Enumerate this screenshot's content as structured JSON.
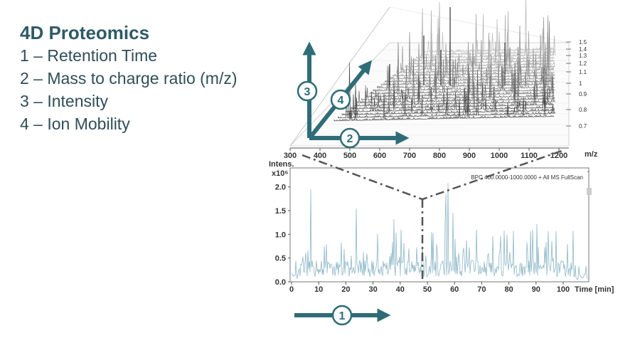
{
  "legend": {
    "title": "4D Proteomics",
    "items": [
      "1 – Retention Time",
      "2 – Mass to charge ratio (m/z)",
      "3 – Intensity",
      "4 – Ion Mobility"
    ]
  },
  "axis_markers": [
    "1",
    "2",
    "3",
    "4"
  ],
  "colors": {
    "accent": "#2e6d78",
    "trace": "#8fb8c8",
    "text": "#2f4e57"
  },
  "plot3d": {
    "x_ticks": [
      "300",
      "400",
      "500",
      "600",
      "700",
      "800",
      "900",
      "1000",
      "1100",
      "1200"
    ],
    "x_unit": "m/z",
    "mobility_ticks": [
      "1.5",
      "1.4",
      "1.3",
      "1.2",
      "1.1",
      "1",
      "0.9",
      "0.8",
      "0.7"
    ]
  },
  "chromatogram": {
    "y_label_top": "Intens.",
    "y_label_exp": "x10⁶",
    "y_ticks": [
      "2.0",
      "1.5",
      "1.0",
      "0.5",
      "0.0"
    ],
    "x_ticks": [
      "0",
      "10",
      "20",
      "30",
      "40",
      "50",
      "60",
      "70",
      "80",
      "90",
      "100"
    ],
    "x_unit": "Time [min]",
    "legend": "BPC 400.0000-1000.0000 + All MS FullScan"
  }
}
